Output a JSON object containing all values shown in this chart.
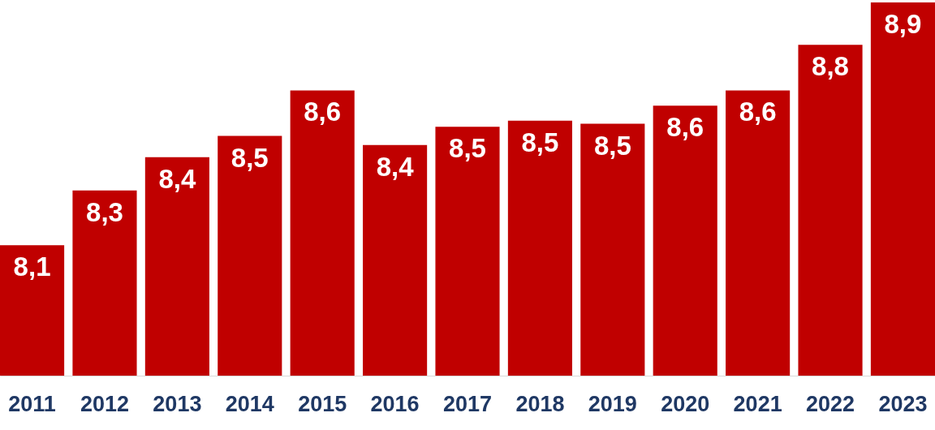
{
  "chart_data": {
    "type": "bar",
    "categories": [
      "2011",
      "2012",
      "2013",
      "2014",
      "2015",
      "2016",
      "2017",
      "2018",
      "2019",
      "2020",
      "2021",
      "2022",
      "2023"
    ],
    "values": [
      8.1,
      8.28,
      8.39,
      8.46,
      8.61,
      8.43,
      8.49,
      8.51,
      8.5,
      8.56,
      8.61,
      8.76,
      8.9
    ],
    "value_labels": [
      "8,1",
      "8,3",
      "8,4",
      "8,5",
      "8,6",
      "8,4",
      "8,5",
      "8,5",
      "8,5",
      "8,6",
      "8,6",
      "8,8",
      "8,9"
    ],
    "color": "#c00000",
    "ylim": [
      7.67,
      8.9
    ],
    "tick_labels": "x"
  }
}
